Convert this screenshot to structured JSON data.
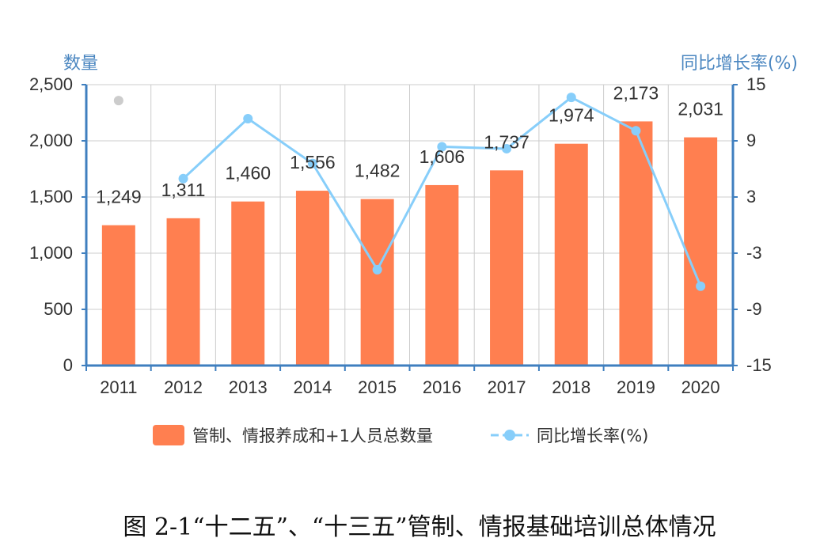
{
  "caption": "图 2-1“十二五”、“十三五”管制、情报基础培训总体情况",
  "colors": {
    "bar": "#ff7f50",
    "line": "#87cefa",
    "axis": "#3f7fbf",
    "grid": "#cccccc",
    "missing_point": "#cccccc"
  },
  "chart_data": {
    "type": "bar",
    "categories": [
      "2011",
      "2012",
      "2013",
      "2014",
      "2015",
      "2016",
      "2017",
      "2018",
      "2019",
      "2020"
    ],
    "ylabel": "数量",
    "y2label": "同比增长率(%)",
    "ylim": [
      0,
      2500
    ],
    "y2lim": [
      -15,
      15
    ],
    "yticks": [
      "0",
      "500",
      "1,000",
      "1,500",
      "2,000",
      "2,500"
    ],
    "y2ticks": [
      "-15",
      "-9",
      "-3",
      "3",
      "9",
      "15"
    ],
    "grid": true,
    "legend_position": "bottom-center",
    "series": [
      {
        "name": "管制、情报养成和+1人员总数量",
        "type": "bar",
        "axis": "left",
        "values": [
          1249,
          1311,
          1460,
          1556,
          1482,
          1606,
          1737,
          1974,
          2173,
          2031
        ],
        "labels": [
          "1,249",
          "1,311",
          "1,460",
          "1,556",
          "1,482",
          "1,606",
          "1,737",
          "1,974",
          "2,173",
          "2,031"
        ]
      },
      {
        "name": "同比增长率(%)",
        "type": "line",
        "axis": "right",
        "values": [
          null,
          4.96,
          11.37,
          6.58,
          -4.76,
          8.37,
          8.16,
          13.64,
          10.08,
          -6.53
        ]
      }
    ]
  }
}
